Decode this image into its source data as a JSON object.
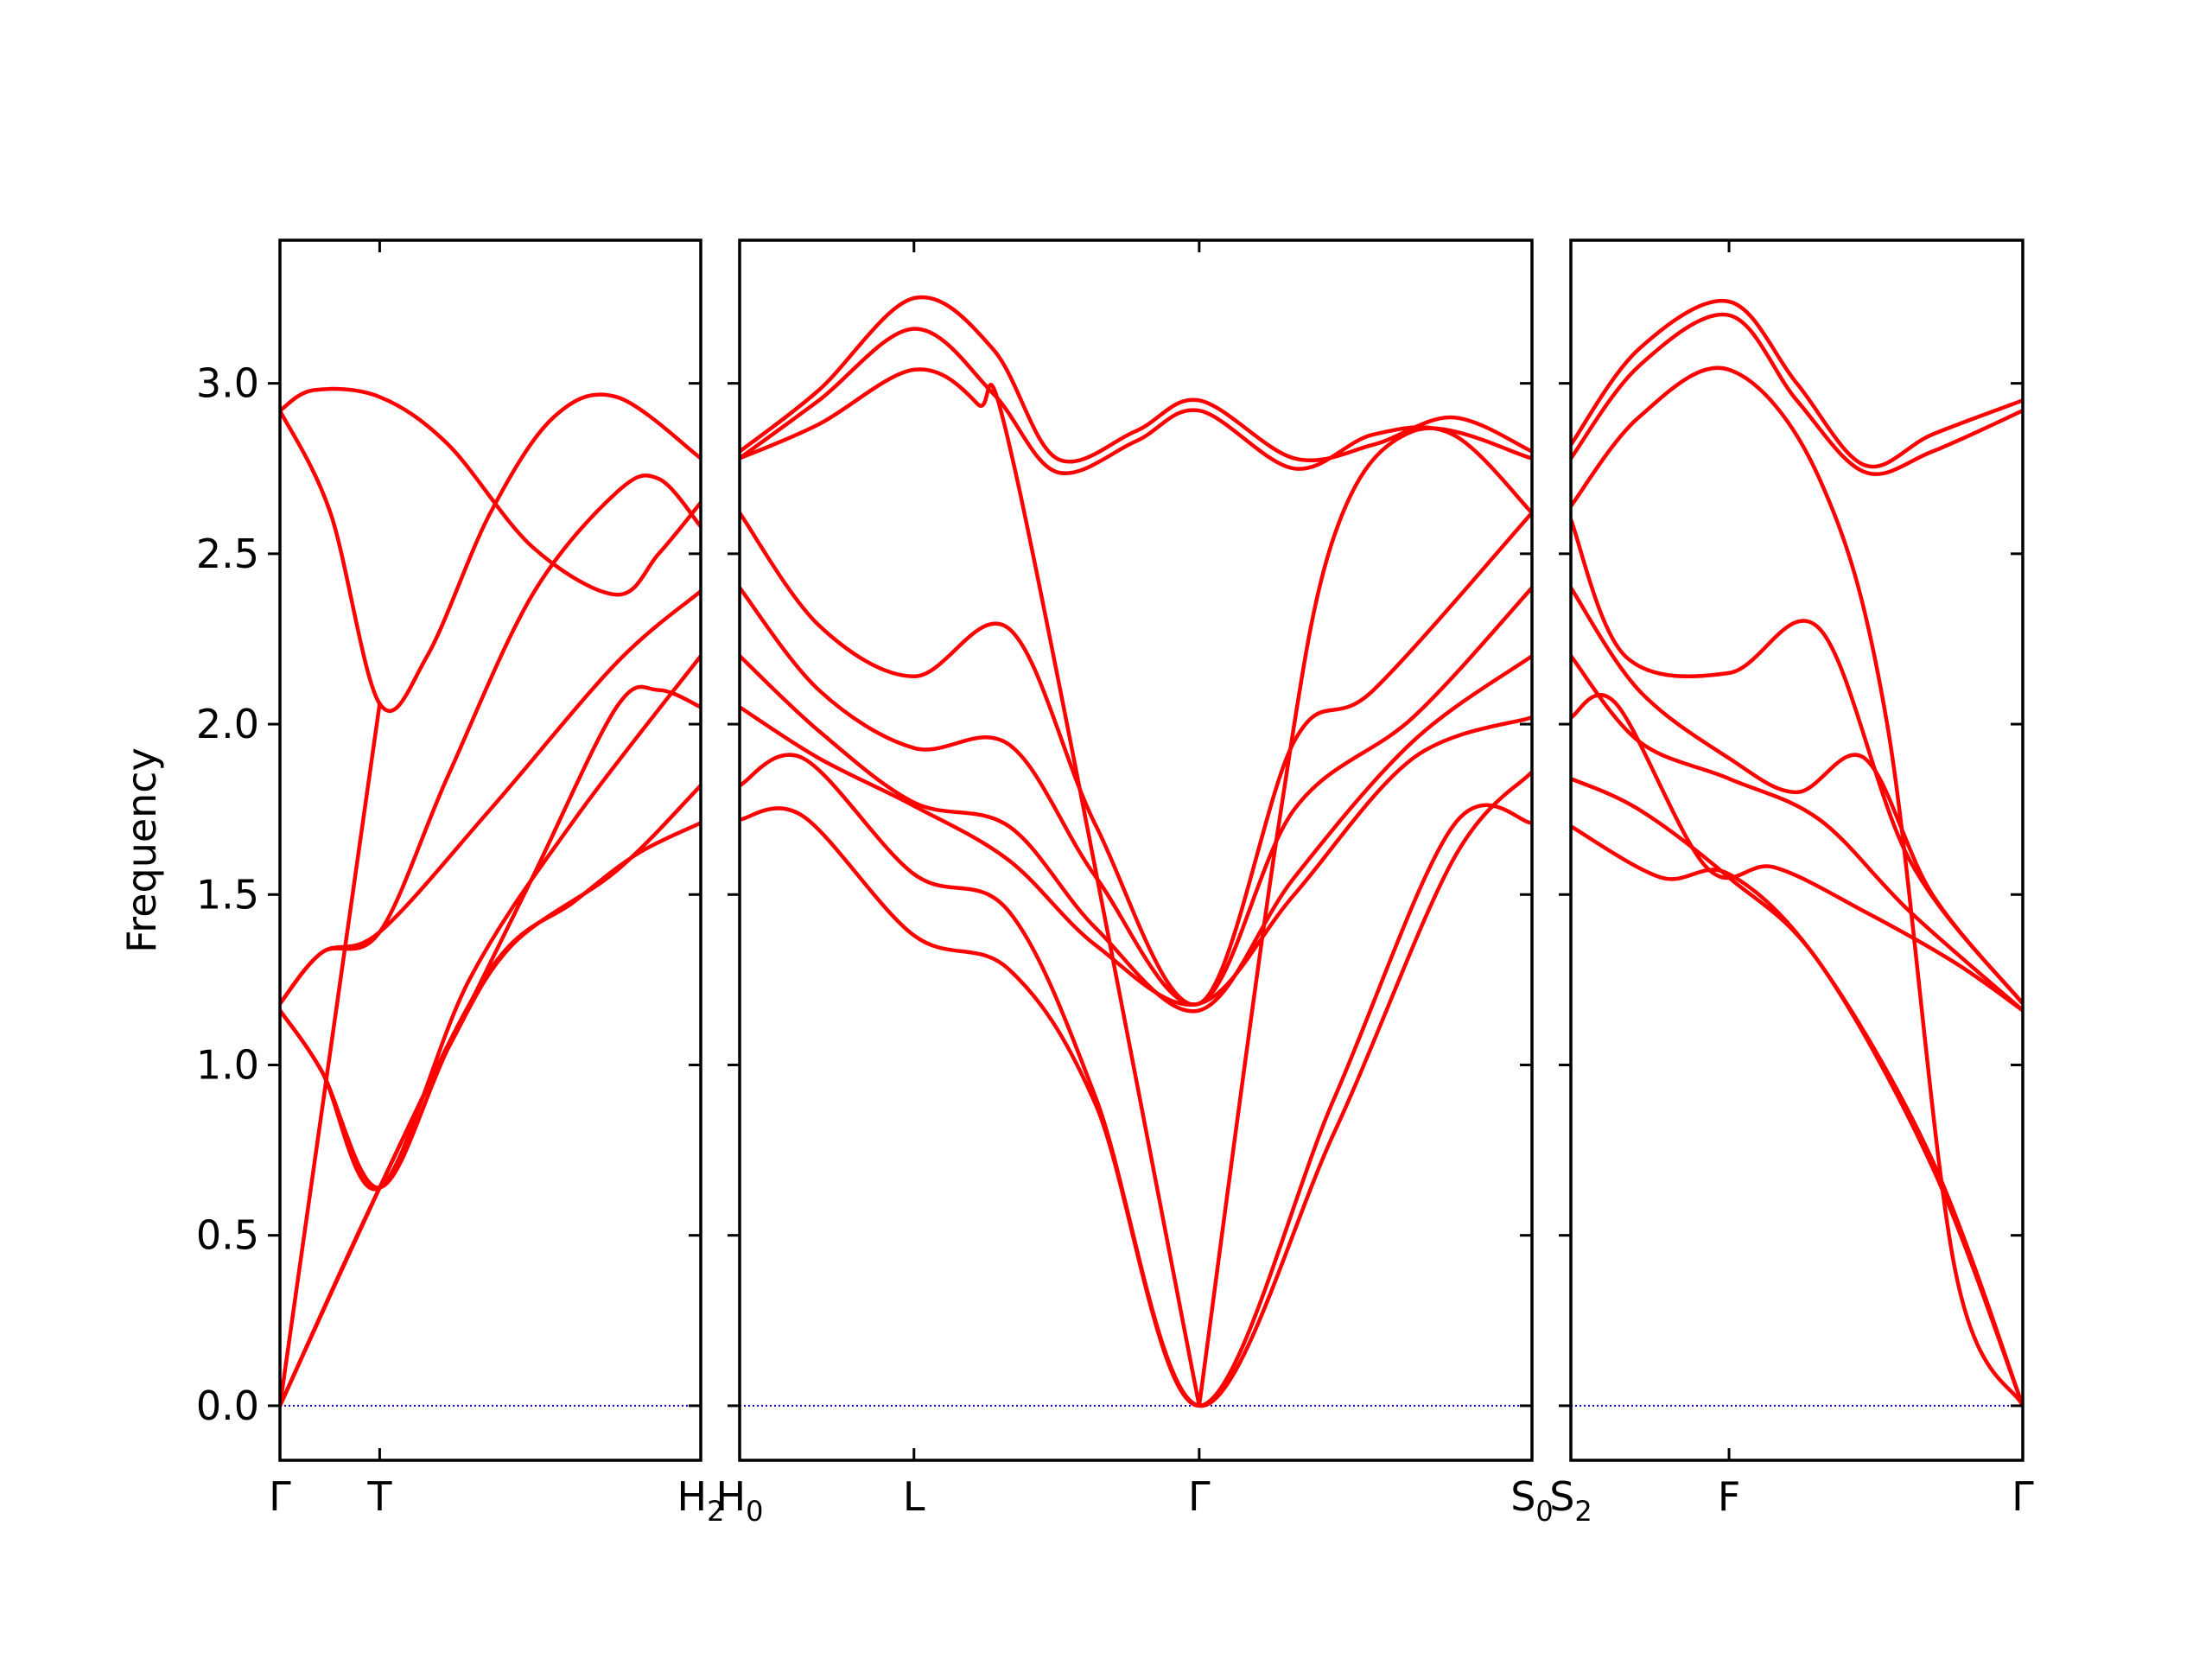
{
  "chart_data": {
    "type": "line",
    "title": "",
    "ylabel": "Frequency",
    "ylim": [
      -0.16,
      3.42
    ],
    "y_ticks": [
      0.0,
      0.5,
      1.0,
      1.5,
      2.0,
      2.5,
      3.0
    ],
    "y_tick_labels": [
      "0.0",
      "0.5",
      "1.0",
      "1.5",
      "2.0",
      "2.5",
      "3.0"
    ],
    "line_color": "#ff0000",
    "zero_line_color": "#0000cc",
    "panels": [
      {
        "xlim": [
          0,
          1
        ],
        "labels": [
          {
            "x": 0.0,
            "text": "Γ",
            "sub": ""
          },
          {
            "x": 0.237,
            "text": "T",
            "sub": ""
          },
          {
            "x": 1.0,
            "text": "H",
            "sub": "2"
          }
        ],
        "series": [
          {
            "points": [
              [
                0,
                2.92
              ],
              [
                0.08,
                2.98
              ],
              [
                0.237,
                2.96
              ],
              [
                0.4,
                2.82
              ],
              [
                0.6,
                2.52
              ],
              [
                0.8,
                2.38
              ],
              [
                0.9,
                2.5
              ],
              [
                1,
                2.65
              ]
            ]
          },
          {
            "points": [
              [
                0,
                2.92
              ],
              [
                0.12,
                2.62
              ],
              [
                0.237,
                2.06
              ],
              [
                0.35,
                2.2
              ],
              [
                0.5,
                2.62
              ],
              [
                0.65,
                2.9
              ],
              [
                0.8,
                2.96
              ],
              [
                1,
                2.78
              ]
            ]
          },
          {
            "points": [
              [
                0,
                1.18
              ],
              [
                0.1,
                1.33
              ],
              [
                0.237,
                1.39
              ],
              [
                0.4,
                1.85
              ],
              [
                0.6,
                2.38
              ],
              [
                0.8,
                2.68
              ],
              [
                0.9,
                2.72
              ],
              [
                1,
                2.58
              ]
            ]
          },
          {
            "points": [
              [
                0,
                1.18
              ],
              [
                0.1,
                1.33
              ],
              [
                0.237,
                1.39
              ],
              [
                0.5,
                1.75
              ],
              [
                0.8,
                2.18
              ],
              [
                1,
                2.39
              ]
            ]
          },
          {
            "points": [
              [
                0,
                0.0
              ],
              [
                0.237,
                2.06
              ]
            ]
          },
          {
            "points": [
              [
                0,
                1.16
              ],
              [
                0.1,
                0.98
              ],
              [
                0.237,
                0.64
              ],
              [
                0.4,
                1.05
              ],
              [
                0.6,
                1.55
              ],
              [
                0.8,
                2.05
              ],
              [
                0.9,
                2.1
              ],
              [
                1,
                2.05
              ]
            ]
          },
          {
            "points": [
              [
                0,
                1.16
              ],
              [
                0.1,
                0.98
              ],
              [
                0.237,
                0.64
              ],
              [
                0.45,
                1.25
              ],
              [
                0.7,
                1.72
              ],
              [
                1,
                2.2
              ]
            ]
          },
          {
            "points": [
              [
                0,
                0.0
              ],
              [
                0.237,
                0.64
              ],
              [
                0.4,
                1.05
              ],
              [
                0.55,
                1.35
              ],
              [
                0.8,
                1.57
              ],
              [
                1,
                1.82
              ]
            ]
          },
          {
            "points": [
              [
                0,
                0.0
              ],
              [
                0.237,
                0.64
              ],
              [
                0.5,
                1.28
              ],
              [
                0.7,
                1.48
              ],
              [
                0.85,
                1.62
              ],
              [
                1,
                1.71
              ]
            ]
          }
        ]
      },
      {
        "xlim": [
          0,
          1
        ],
        "labels": [
          {
            "x": 0.0,
            "text": "H",
            "sub": "0"
          },
          {
            "x": 0.22,
            "text": "L",
            "sub": ""
          },
          {
            "x": 0.58,
            "text": "Γ",
            "sub": ""
          },
          {
            "x": 1.0,
            "text": "S",
            "sub": "0"
          }
        ],
        "series": [
          {
            "points": [
              [
                0,
                2.8
              ],
              [
                0.1,
                2.98
              ],
              [
                0.22,
                3.25
              ],
              [
                0.32,
                3.1
              ],
              [
                0.4,
                2.78
              ],
              [
                0.5,
                2.86
              ],
              [
                0.58,
                2.95
              ],
              [
                0.7,
                2.78
              ],
              [
                0.8,
                2.82
              ],
              [
                0.9,
                2.9
              ],
              [
                1,
                2.8
              ]
            ]
          },
          {
            "points": [
              [
                0,
                2.78
              ],
              [
                0.1,
                2.95
              ],
              [
                0.22,
                3.16
              ],
              [
                0.32,
                2.97
              ],
              [
                0.4,
                2.74
              ],
              [
                0.5,
                2.83
              ],
              [
                0.58,
                2.92
              ],
              [
                0.7,
                2.75
              ],
              [
                0.8,
                2.85
              ],
              [
                0.9,
                2.85
              ],
              [
                1,
                2.62
              ]
            ]
          },
          {
            "points": [
              [
                0,
                2.78
              ],
              [
                0.1,
                2.88
              ],
              [
                0.22,
                3.04
              ],
              [
                0.3,
                2.94
              ],
              [
                0.35,
                2.72
              ],
              [
                0.58,
                0.0
              ]
            ]
          },
          {
            "points": [
              [
                0,
                2.62
              ],
              [
                0.1,
                2.29
              ],
              [
                0.22,
                2.14
              ],
              [
                0.34,
                2.28
              ],
              [
                0.45,
                1.7
              ],
              [
                0.58,
                1.18
              ],
              [
                0.7,
                1.95
              ],
              [
                0.8,
                2.1
              ],
              [
                1,
                2.62
              ]
            ]
          },
          {
            "points": [
              [
                0,
                2.4
              ],
              [
                0.1,
                2.1
              ],
              [
                0.22,
                1.93
              ],
              [
                0.34,
                1.94
              ],
              [
                0.45,
                1.55
              ],
              [
                0.58,
                1.18
              ],
              [
                0.7,
                1.75
              ],
              [
                0.85,
                2.02
              ],
              [
                1,
                2.4
              ]
            ]
          },
          {
            "points": [
              [
                0,
                2.2
              ],
              [
                0.1,
                1.98
              ],
              [
                0.22,
                1.77
              ],
              [
                0.34,
                1.7
              ],
              [
                0.45,
                1.4
              ],
              [
                0.58,
                1.16
              ],
              [
                0.7,
                1.55
              ],
              [
                0.85,
                1.95
              ],
              [
                1,
                2.2
              ]
            ]
          },
          {
            "points": [
              [
                0,
                2.05
              ],
              [
                0.1,
                1.9
              ],
              [
                0.22,
                1.76
              ],
              [
                0.34,
                1.6
              ],
              [
                0.45,
                1.35
              ],
              [
                0.58,
                1.18
              ],
              [
                0.7,
                1.5
              ],
              [
                0.85,
                1.9
              ],
              [
                1,
                2.02
              ]
            ]
          },
          {
            "points": [
              [
                0,
                1.82
              ],
              [
                0.08,
                1.9
              ],
              [
                0.22,
                1.56
              ],
              [
                0.34,
                1.45
              ],
              [
                0.45,
                0.9
              ],
              [
                0.58,
                0.0
              ],
              [
                0.75,
                0.8
              ],
              [
                0.9,
                1.6
              ],
              [
                1,
                1.86
              ]
            ]
          },
          {
            "points": [
              [
                0,
                1.72
              ],
              [
                0.08,
                1.73
              ],
              [
                0.22,
                1.38
              ],
              [
                0.34,
                1.28
              ],
              [
                0.45,
                0.88
              ],
              [
                0.58,
                0.0
              ],
              [
                0.75,
                0.9
              ],
              [
                0.9,
                1.7
              ],
              [
                1,
                1.71
              ]
            ]
          },
          {
            "points": [
              [
                0.58,
                0.0
              ],
              [
                0.68,
                1.7
              ],
              [
                0.75,
                2.55
              ],
              [
                0.85,
                2.86
              ],
              [
                1,
                2.78
              ]
            ]
          }
        ]
      },
      {
        "xlim": [
          0,
          1
        ],
        "labels": [
          {
            "x": 0.0,
            "text": "S",
            "sub": "2"
          },
          {
            "x": 0.35,
            "text": "F",
            "sub": ""
          },
          {
            "x": 1.0,
            "text": "Γ",
            "sub": ""
          }
        ],
        "series": [
          {
            "points": [
              [
                0,
                2.82
              ],
              [
                0.15,
                3.1
              ],
              [
                0.35,
                3.24
              ],
              [
                0.5,
                3.0
              ],
              [
                0.65,
                2.76
              ],
              [
                0.8,
                2.85
              ],
              [
                1,
                2.95
              ]
            ]
          },
          {
            "points": [
              [
                0,
                2.78
              ],
              [
                0.15,
                3.05
              ],
              [
                0.35,
                3.2
              ],
              [
                0.5,
                2.95
              ],
              [
                0.65,
                2.74
              ],
              [
                0.8,
                2.8
              ],
              [
                1,
                2.92
              ]
            ]
          },
          {
            "points": [
              [
                0,
                2.64
              ],
              [
                0.15,
                2.9
              ],
              [
                0.35,
                3.04
              ],
              [
                0.55,
                2.72
              ],
              [
                0.7,
                2.0
              ],
              [
                0.85,
                0.4
              ],
              [
                1,
                0.0
              ]
            ]
          },
          {
            "points": [
              [
                0,
                2.6
              ],
              [
                0.12,
                2.2
              ],
              [
                0.35,
                2.15
              ],
              [
                0.55,
                2.28
              ],
              [
                0.75,
                1.6
              ],
              [
                1,
                1.18
              ]
            ]
          },
          {
            "points": [
              [
                0,
                2.4
              ],
              [
                0.15,
                2.1
              ],
              [
                0.35,
                1.9
              ],
              [
                0.5,
                1.8
              ],
              [
                0.65,
                1.9
              ],
              [
                0.8,
                1.5
              ],
              [
                1,
                1.18
              ]
            ]
          },
          {
            "points": [
              [
                0,
                2.2
              ],
              [
                0.15,
                1.95
              ],
              [
                0.35,
                1.84
              ],
              [
                0.55,
                1.72
              ],
              [
                0.75,
                1.45
              ],
              [
                1,
                1.16
              ]
            ]
          },
          {
            "points": [
              [
                0,
                2.02
              ],
              [
                0.1,
                2.06
              ],
              [
                0.3,
                1.58
              ],
              [
                0.45,
                1.58
              ],
              [
                0.65,
                1.45
              ],
              [
                0.85,
                1.3
              ],
              [
                1,
                1.16
              ]
            ]
          },
          {
            "points": [
              [
                0,
                1.84
              ],
              [
                0.15,
                1.75
              ],
              [
                0.35,
                1.55
              ],
              [
                0.55,
                1.3
              ],
              [
                0.8,
                0.7
              ],
              [
                1,
                0.0
              ]
            ]
          },
          {
            "points": [
              [
                0,
                1.7
              ],
              [
                0.2,
                1.55
              ],
              [
                0.35,
                1.56
              ],
              [
                0.55,
                1.3
              ],
              [
                0.8,
                0.72
              ],
              [
                1,
                0.0
              ]
            ]
          }
        ]
      }
    ]
  }
}
